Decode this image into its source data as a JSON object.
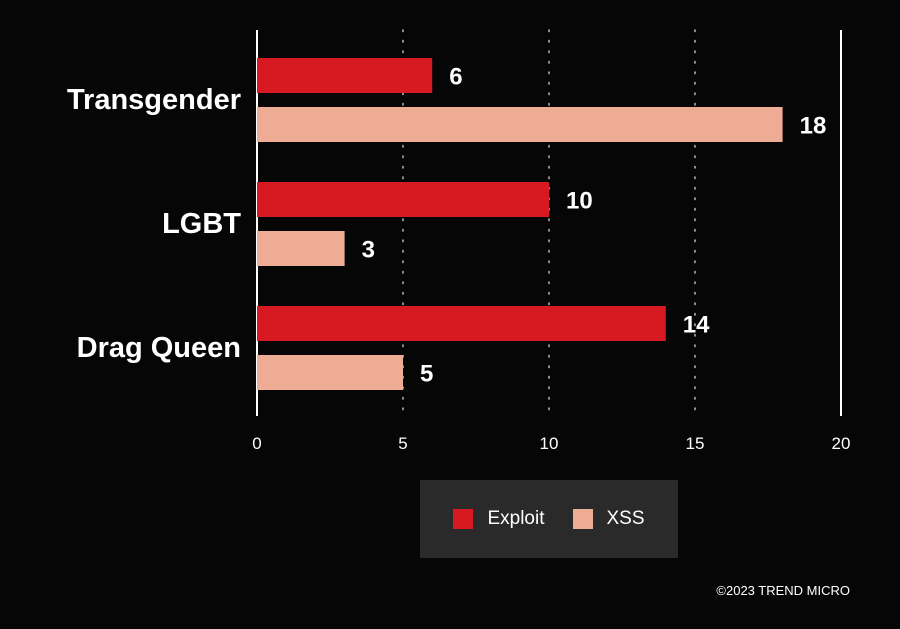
{
  "chart_data": {
    "type": "bar",
    "orientation": "horizontal",
    "categories": [
      "Transgender",
      "LGBT",
      "Drag Queen"
    ],
    "series": [
      {
        "name": "Exploit",
        "values": [
          6,
          10,
          14
        ],
        "color": "#d71a21"
      },
      {
        "name": "XSS",
        "values": [
          18,
          3,
          5
        ],
        "color": "#eeac94"
      }
    ],
    "xlim": [
      0,
      20
    ],
    "x_ticks": [
      0,
      5,
      10,
      15,
      20
    ],
    "grid": "vertical dotted",
    "legend_position": "bottom"
  },
  "footer": {
    "copyright": "©2023 TREND MICRO"
  }
}
